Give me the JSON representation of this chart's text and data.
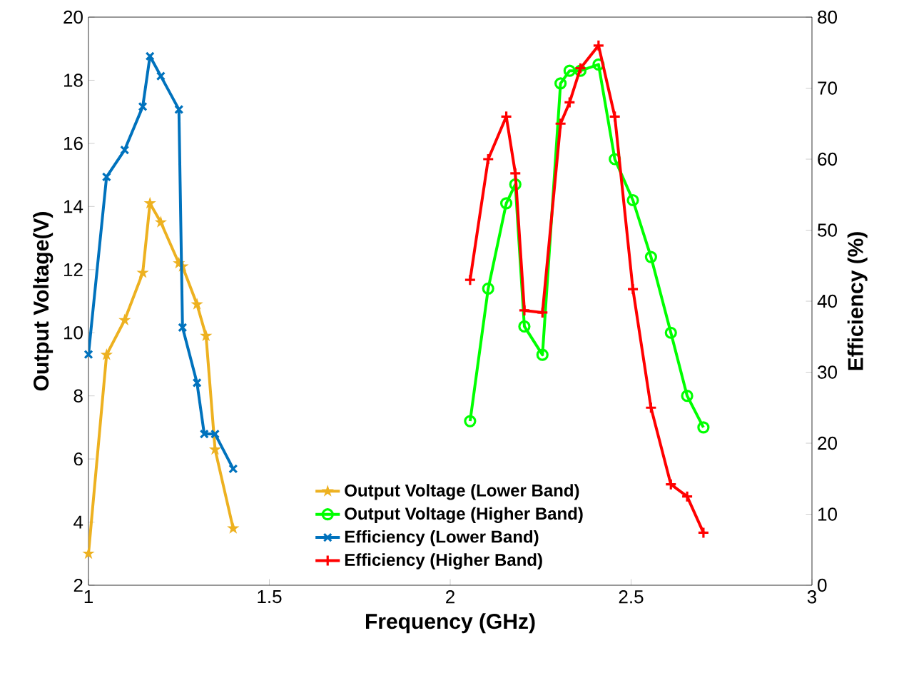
{
  "chart_data": {
    "type": "line",
    "xlabel": "Frequency (GHz)",
    "ylabel": "Output Voltage(V)",
    "y2label": "Efficiency (%)",
    "xlim": [
      1,
      3
    ],
    "xticks": [
      1,
      1.5,
      2,
      2.5,
      3
    ],
    "ylim": [
      2,
      20
    ],
    "yticks": [
      2,
      4,
      6,
      8,
      10,
      12,
      14,
      16,
      18,
      20
    ],
    "y2lim": [
      0,
      80
    ],
    "y2ticks": [
      0,
      10,
      20,
      30,
      40,
      50,
      60,
      70,
      80
    ],
    "legend": "bottom",
    "grid": false,
    "line_style": "solid",
    "series": [
      {
        "name": "Output Voltage (Lower Band)",
        "color": "#edb120",
        "marker": "star",
        "x": [
          1.0,
          1.05,
          1.1,
          1.15,
          1.17,
          1.2,
          1.25,
          1.26,
          1.3,
          1.325,
          1.35,
          1.4
        ],
        "values": [
          3.0,
          9.3,
          10.4,
          11.9,
          14.1,
          13.5,
          12.2,
          12.1,
          10.9,
          9.9,
          6.3,
          3.8
        ]
      },
      {
        "name": "Output Voltage (Higher Band)",
        "color": "#00ff00",
        "marker": "circle",
        "x": [
          2.055,
          2.105,
          2.155,
          2.18,
          2.205,
          2.255,
          2.305,
          2.33,
          2.36,
          2.41,
          2.455,
          2.505,
          2.555,
          2.61,
          2.655,
          2.7
        ],
        "values": [
          7.2,
          11.4,
          14.1,
          14.7,
          10.2,
          9.3,
          17.9,
          18.3,
          18.3,
          18.5,
          15.5,
          14.2,
          12.4,
          10.0,
          8.0,
          7.0
        ]
      },
      {
        "name": "Efficiency (Lower Band)",
        "color": "#0072bd",
        "marker": "cross",
        "axis": "y2",
        "x": [
          1.0,
          1.05,
          1.1,
          1.15,
          1.17,
          1.2,
          1.25,
          1.26,
          1.3,
          1.32,
          1.35,
          1.4
        ],
        "values": [
          32.5,
          57.5,
          61.3,
          67.4,
          74.5,
          71.7,
          67.0,
          36.3,
          28.5,
          21.3,
          21.3,
          16.4
        ]
      },
      {
        "name": "Efficiency (Higher Band)",
        "color": "#ff0000",
        "marker": "plus",
        "axis": "y2",
        "x": [
          2.055,
          2.105,
          2.155,
          2.18,
          2.205,
          2.255,
          2.305,
          2.33,
          2.36,
          2.41,
          2.455,
          2.505,
          2.555,
          2.61,
          2.655,
          2.7
        ],
        "values": [
          43.0,
          60.0,
          66.0,
          58.0,
          38.7,
          38.4,
          65.0,
          68.0,
          72.8,
          76.0,
          66.0,
          41.7,
          25.0,
          14.2,
          12.5,
          7.4
        ]
      }
    ]
  }
}
